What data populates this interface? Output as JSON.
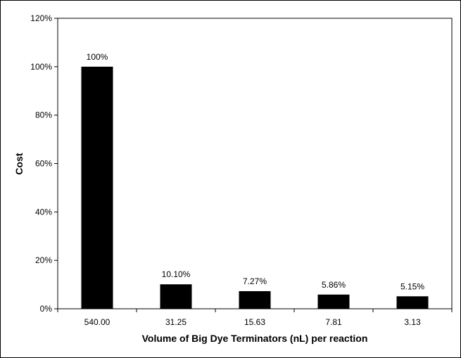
{
  "chart_data": {
    "type": "bar",
    "title": "",
    "xlabel": "Volume of Big Dye Terminators (nL) per reaction",
    "ylabel": "Cost",
    "categories": [
      "540.00",
      "31.25",
      "15.63",
      "7.81",
      "3.13"
    ],
    "values": [
      100,
      10.1,
      7.27,
      5.86,
      5.15
    ],
    "data_labels": [
      "100%",
      "10.10%",
      "7.27%",
      "5.86%",
      "5.15%"
    ],
    "ylim": [
      0,
      120
    ],
    "yticks": [
      0,
      20,
      40,
      60,
      80,
      100,
      120
    ],
    "ytick_labels": [
      "0%",
      "20%",
      "40%",
      "60%",
      "80%",
      "100%",
      "120%"
    ],
    "grid": false,
    "bar_color": "#000000"
  }
}
